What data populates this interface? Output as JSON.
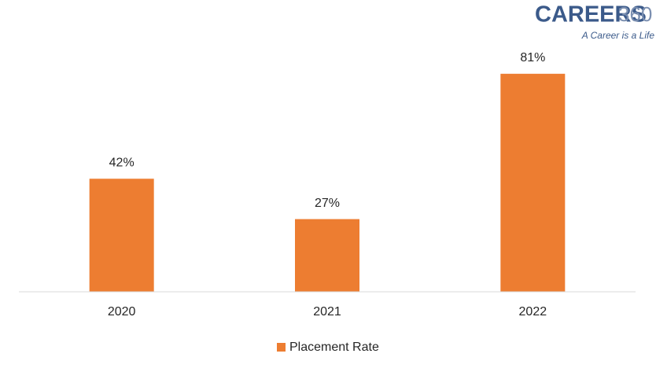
{
  "chart_data": {
    "type": "bar",
    "logo": {
      "name": "CAREERS",
      "number": "360",
      "tagline": "A Career is a Life"
    },
    "categories": [
      "2020",
      "2021",
      "2022"
    ],
    "series": [
      {
        "name": "Placement Rate",
        "color": "#ed7d31",
        "values": [
          42,
          27,
          81
        ],
        "value_labels": [
          "42%",
          "27%",
          "81%"
        ]
      }
    ],
    "ylim": [
      0,
      90
    ],
    "legend": "bottom"
  }
}
